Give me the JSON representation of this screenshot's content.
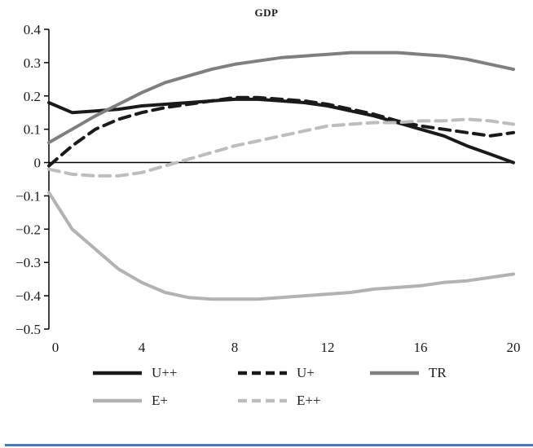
{
  "chart_data": {
    "type": "line",
    "title": "GDP",
    "x": [
      0,
      1,
      2,
      3,
      4,
      5,
      6,
      7,
      8,
      9,
      10,
      11,
      12,
      13,
      14,
      15,
      16,
      17,
      18,
      19,
      20
    ],
    "xlim": [
      0,
      20
    ],
    "ylim": [
      -0.5,
      0.4
    ],
    "xticks": [
      0,
      4,
      8,
      12,
      16,
      20
    ],
    "yticks": [
      0.4,
      0.3,
      0.2,
      0.1,
      0,
      -0.1,
      -0.2,
      -0.3,
      -0.4,
      -0.5
    ],
    "grid": false,
    "legend_position": "bottom",
    "xlabel": "",
    "ylabel": "",
    "series": [
      {
        "name": "U++",
        "color": "#1a1a1a",
        "dash": "solid",
        "width": 4,
        "values": [
          0.18,
          0.15,
          0.155,
          0.16,
          0.17,
          0.175,
          0.18,
          0.185,
          0.19,
          0.19,
          0.185,
          0.18,
          0.17,
          0.155,
          0.14,
          0.12,
          0.1,
          0.08,
          0.05,
          0.025,
          0.0
        ]
      },
      {
        "name": "U+",
        "color": "#1a1a1a",
        "dash": "dashed",
        "width": 4,
        "values": [
          -0.01,
          0.05,
          0.1,
          0.13,
          0.15,
          0.165,
          0.175,
          0.185,
          0.195,
          0.195,
          0.19,
          0.185,
          0.175,
          0.16,
          0.145,
          0.125,
          0.11,
          0.1,
          0.09,
          0.08,
          0.09
        ]
      },
      {
        "name": "TR",
        "color": "#7f7f7f",
        "dash": "solid",
        "width": 4,
        "values": [
          0.06,
          0.1,
          0.14,
          0.175,
          0.21,
          0.24,
          0.26,
          0.28,
          0.295,
          0.305,
          0.315,
          0.32,
          0.325,
          0.33,
          0.33,
          0.33,
          0.325,
          0.32,
          0.31,
          0.295,
          0.28
        ]
      },
      {
        "name": "E+",
        "color": "#b2b2b2",
        "dash": "solid",
        "width": 4,
        "values": [
          -0.09,
          -0.2,
          -0.26,
          -0.32,
          -0.36,
          -0.39,
          -0.405,
          -0.41,
          -0.41,
          -0.41,
          -0.405,
          -0.4,
          -0.395,
          -0.39,
          -0.38,
          -0.375,
          -0.37,
          -0.36,
          -0.355,
          -0.345,
          -0.335
        ]
      },
      {
        "name": "E++",
        "color": "#bdbdbd",
        "dash": "dashed",
        "width": 4,
        "values": [
          -0.02,
          -0.035,
          -0.04,
          -0.04,
          -0.03,
          -0.01,
          0.01,
          0.03,
          0.05,
          0.065,
          0.08,
          0.095,
          0.11,
          0.115,
          0.12,
          0.12,
          0.125,
          0.125,
          0.13,
          0.125,
          0.115
        ]
      }
    ]
  },
  "colors": {
    "axis": "#000000",
    "bottom_border": "#4878be"
  }
}
